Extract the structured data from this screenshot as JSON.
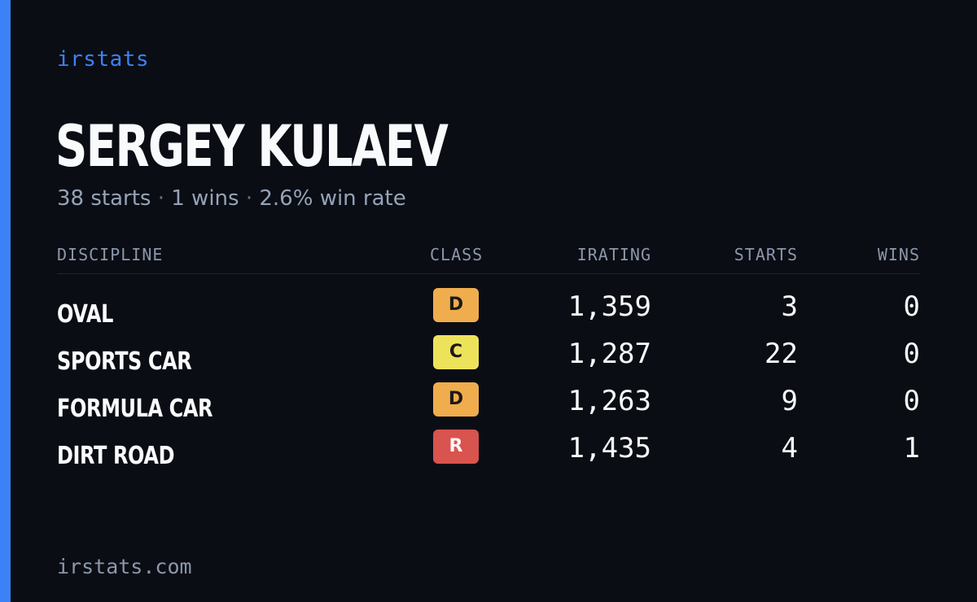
{
  "brand": "irstats",
  "player": {
    "name": "SERGEY KULAEV",
    "starts_text": "38 starts",
    "wins_text": "1 wins",
    "winrate_text": "2.6% win rate",
    "separator": "·"
  },
  "table": {
    "headers": {
      "discipline": "DISCIPLINE",
      "class": "CLASS",
      "irating": "IRATING",
      "starts": "STARTS",
      "wins": "WINS"
    },
    "rows": [
      {
        "discipline": "OVAL",
        "class": "D",
        "class_color": "#f0ad4e",
        "irating": "1,359",
        "starts": "3",
        "wins": "0"
      },
      {
        "discipline": "SPORTS CAR",
        "class": "C",
        "class_color": "#ede35a",
        "irating": "1,287",
        "starts": "22",
        "wins": "0"
      },
      {
        "discipline": "FORMULA CAR",
        "class": "D",
        "class_color": "#f0ad4e",
        "irating": "1,263",
        "starts": "9",
        "wins": "0"
      },
      {
        "discipline": "DIRT ROAD",
        "class": "R",
        "class_color": "#d9534f",
        "irating": "1,435",
        "starts": "4",
        "wins": "1"
      }
    ]
  },
  "footer": "irstats.com",
  "colors": {
    "accent": "#3b82f6",
    "background": "#0b0d14",
    "muted": "#94a3b8"
  }
}
